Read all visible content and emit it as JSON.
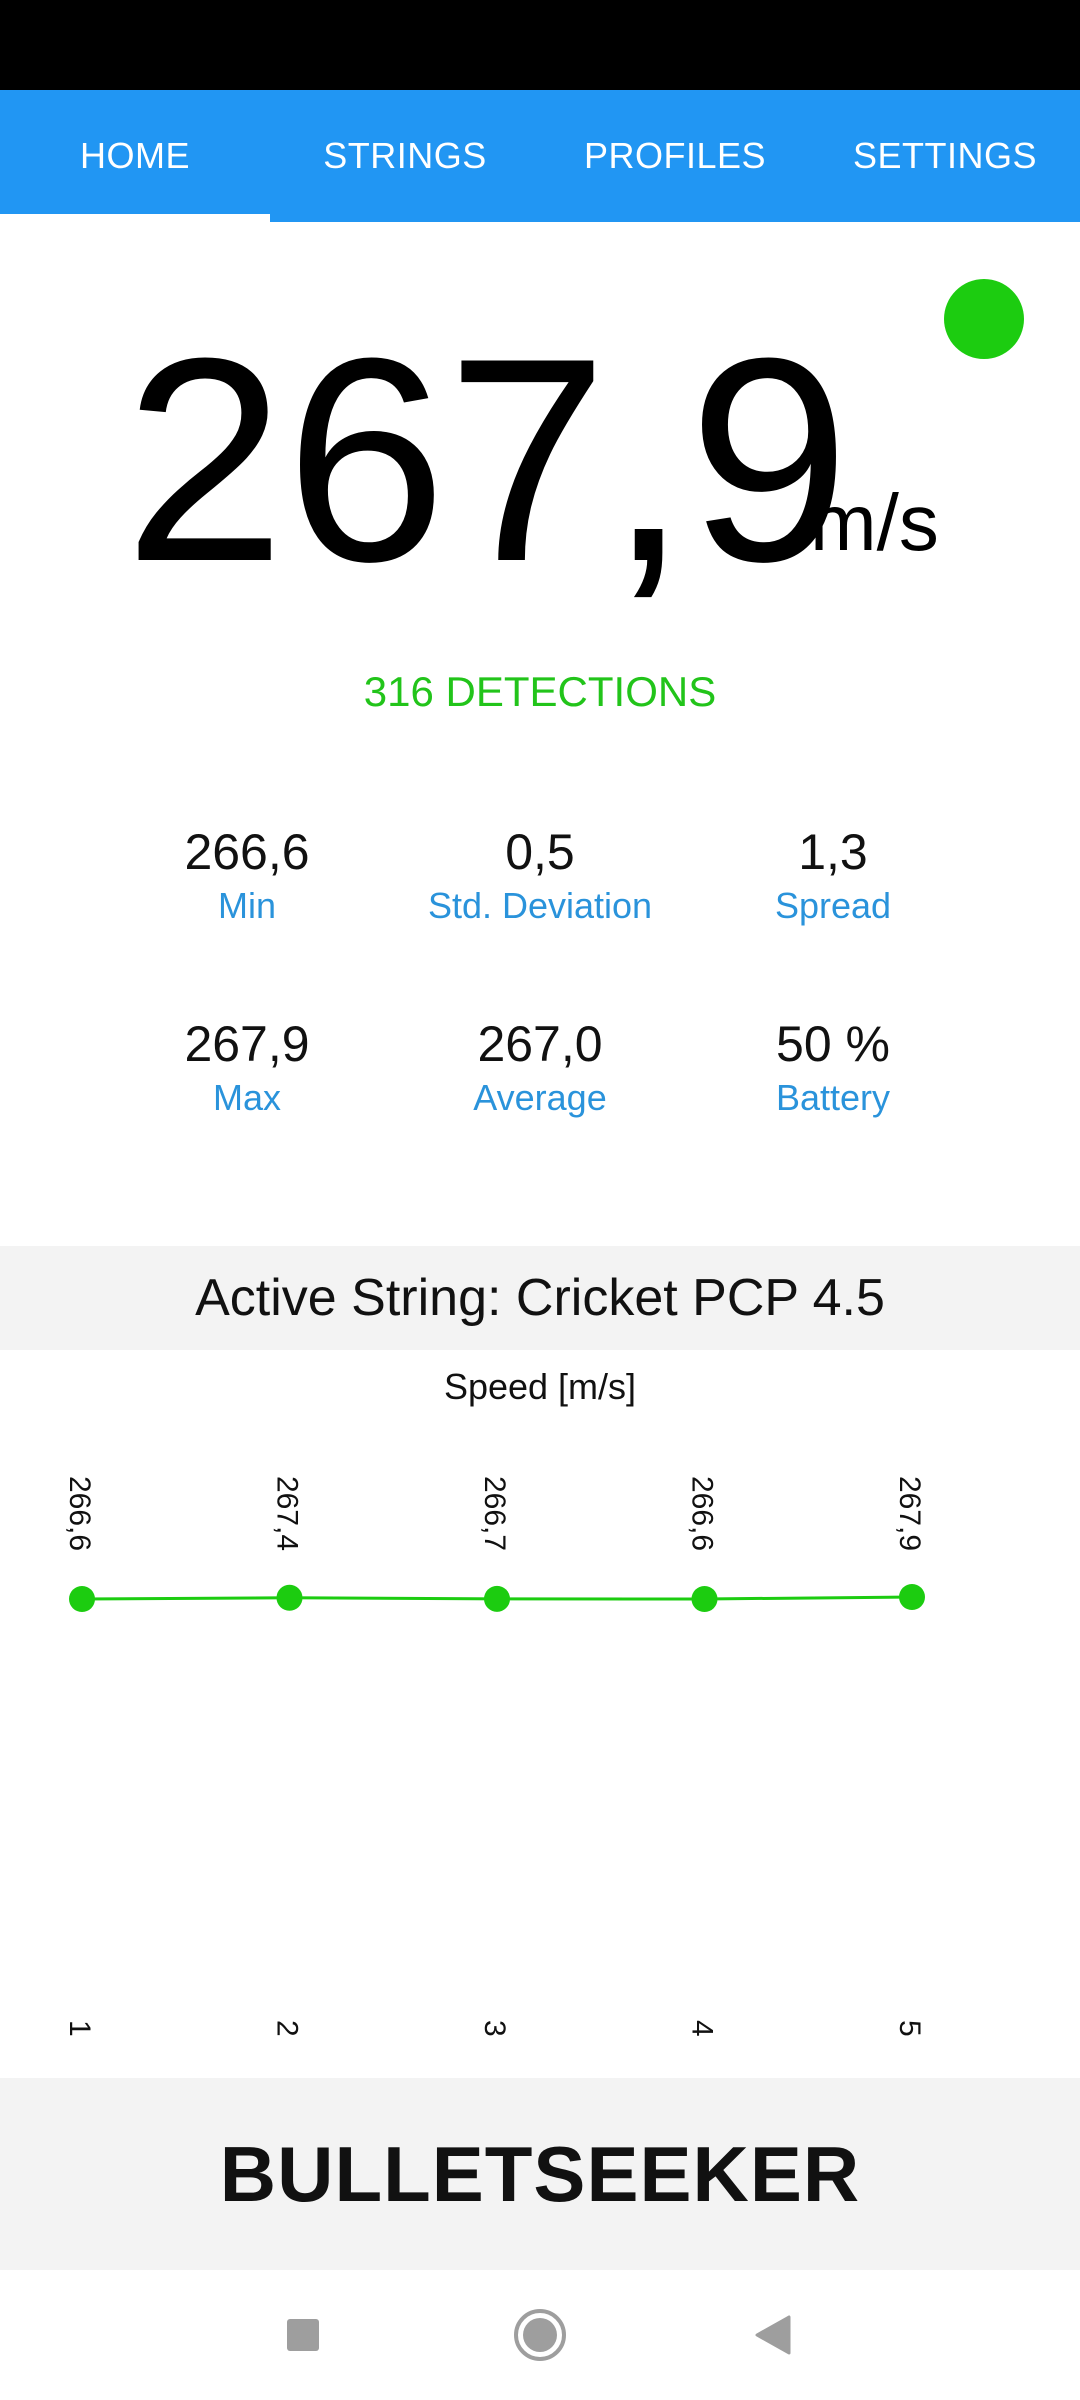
{
  "tabs": [
    {
      "label": "HOME",
      "active": true
    },
    {
      "label": "STRINGS",
      "active": false
    },
    {
      "label": "PROFILES",
      "active": false
    },
    {
      "label": "SETTINGS",
      "active": false
    }
  ],
  "speed": {
    "value": "267,9",
    "unit": "m/s"
  },
  "detections": "316 DETECTIONS",
  "stats": [
    {
      "value": "266,6",
      "label": "Min"
    },
    {
      "value": "0,5",
      "label": "Std. Deviation"
    },
    {
      "value": "1,3",
      "label": "Spread"
    },
    {
      "value": "267,9",
      "label": "Max"
    },
    {
      "value": "267,0",
      "label": "Average"
    },
    {
      "value": "50 %",
      "label": "Battery"
    }
  ],
  "active_string": "Active String: Cricket PCP 4.5",
  "brand": "BULLETSEEKER",
  "colors": {
    "accent": "#2196f3",
    "status_ok": "#1ccc10",
    "label": "#2a93db"
  },
  "icons": {
    "status": "connection-status-dot",
    "nav": [
      "square-icon",
      "circle-icon",
      "triangle-back-icon"
    ]
  },
  "chart_data": {
    "type": "line",
    "title": "Speed [m/s]",
    "categories": [
      "1",
      "2",
      "3",
      "4",
      "5"
    ],
    "values": [
      266.6,
      267.4,
      266.7,
      266.6,
      267.9
    ],
    "data_labels": [
      "266,6",
      "267,4",
      "266,7",
      "266,6",
      "267,9"
    ],
    "color": "#1ccc10"
  }
}
